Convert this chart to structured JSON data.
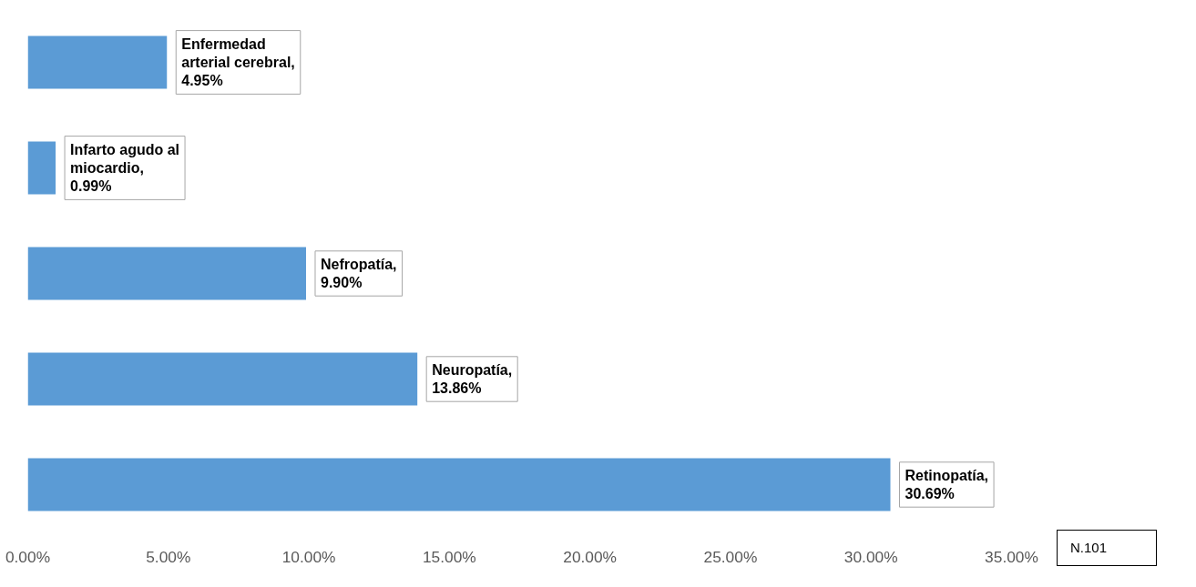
{
  "chart_data": {
    "type": "bar",
    "orientation": "horizontal",
    "categories": [
      null,
      null,
      null,
      null,
      null
    ],
    "values": [
      4.95,
      0.99,
      9.9,
      13.86,
      30.69
    ],
    "value_labels": [
      "Enfermedad arterial cerebral, 4.95%",
      "Infarto agudo al miocardio, 0.99%",
      "Nefropatía, 9.90%",
      "Neuropatía, 13.86%",
      "Retinopatía, 30.69%"
    ],
    "color": "#5b9bd5",
    "xlim": [
      0,
      35
    ],
    "xticks": [
      {
        "value": 0,
        "label": "0.00%"
      },
      {
        "value": 5,
        "label": "5.00%"
      },
      {
        "value": 10,
        "label": "10.00%"
      },
      {
        "value": 15,
        "label": "15.00%"
      },
      {
        "value": 20,
        "label": "20.00%"
      },
      {
        "value": 25,
        "label": "25.00%"
      },
      {
        "value": 30,
        "label": "30.00%"
      },
      {
        "value": 35,
        "label": "35.00%"
      }
    ],
    "tick_labels": "x",
    "grid": false,
    "annotations": [
      "N.101"
    ]
  }
}
